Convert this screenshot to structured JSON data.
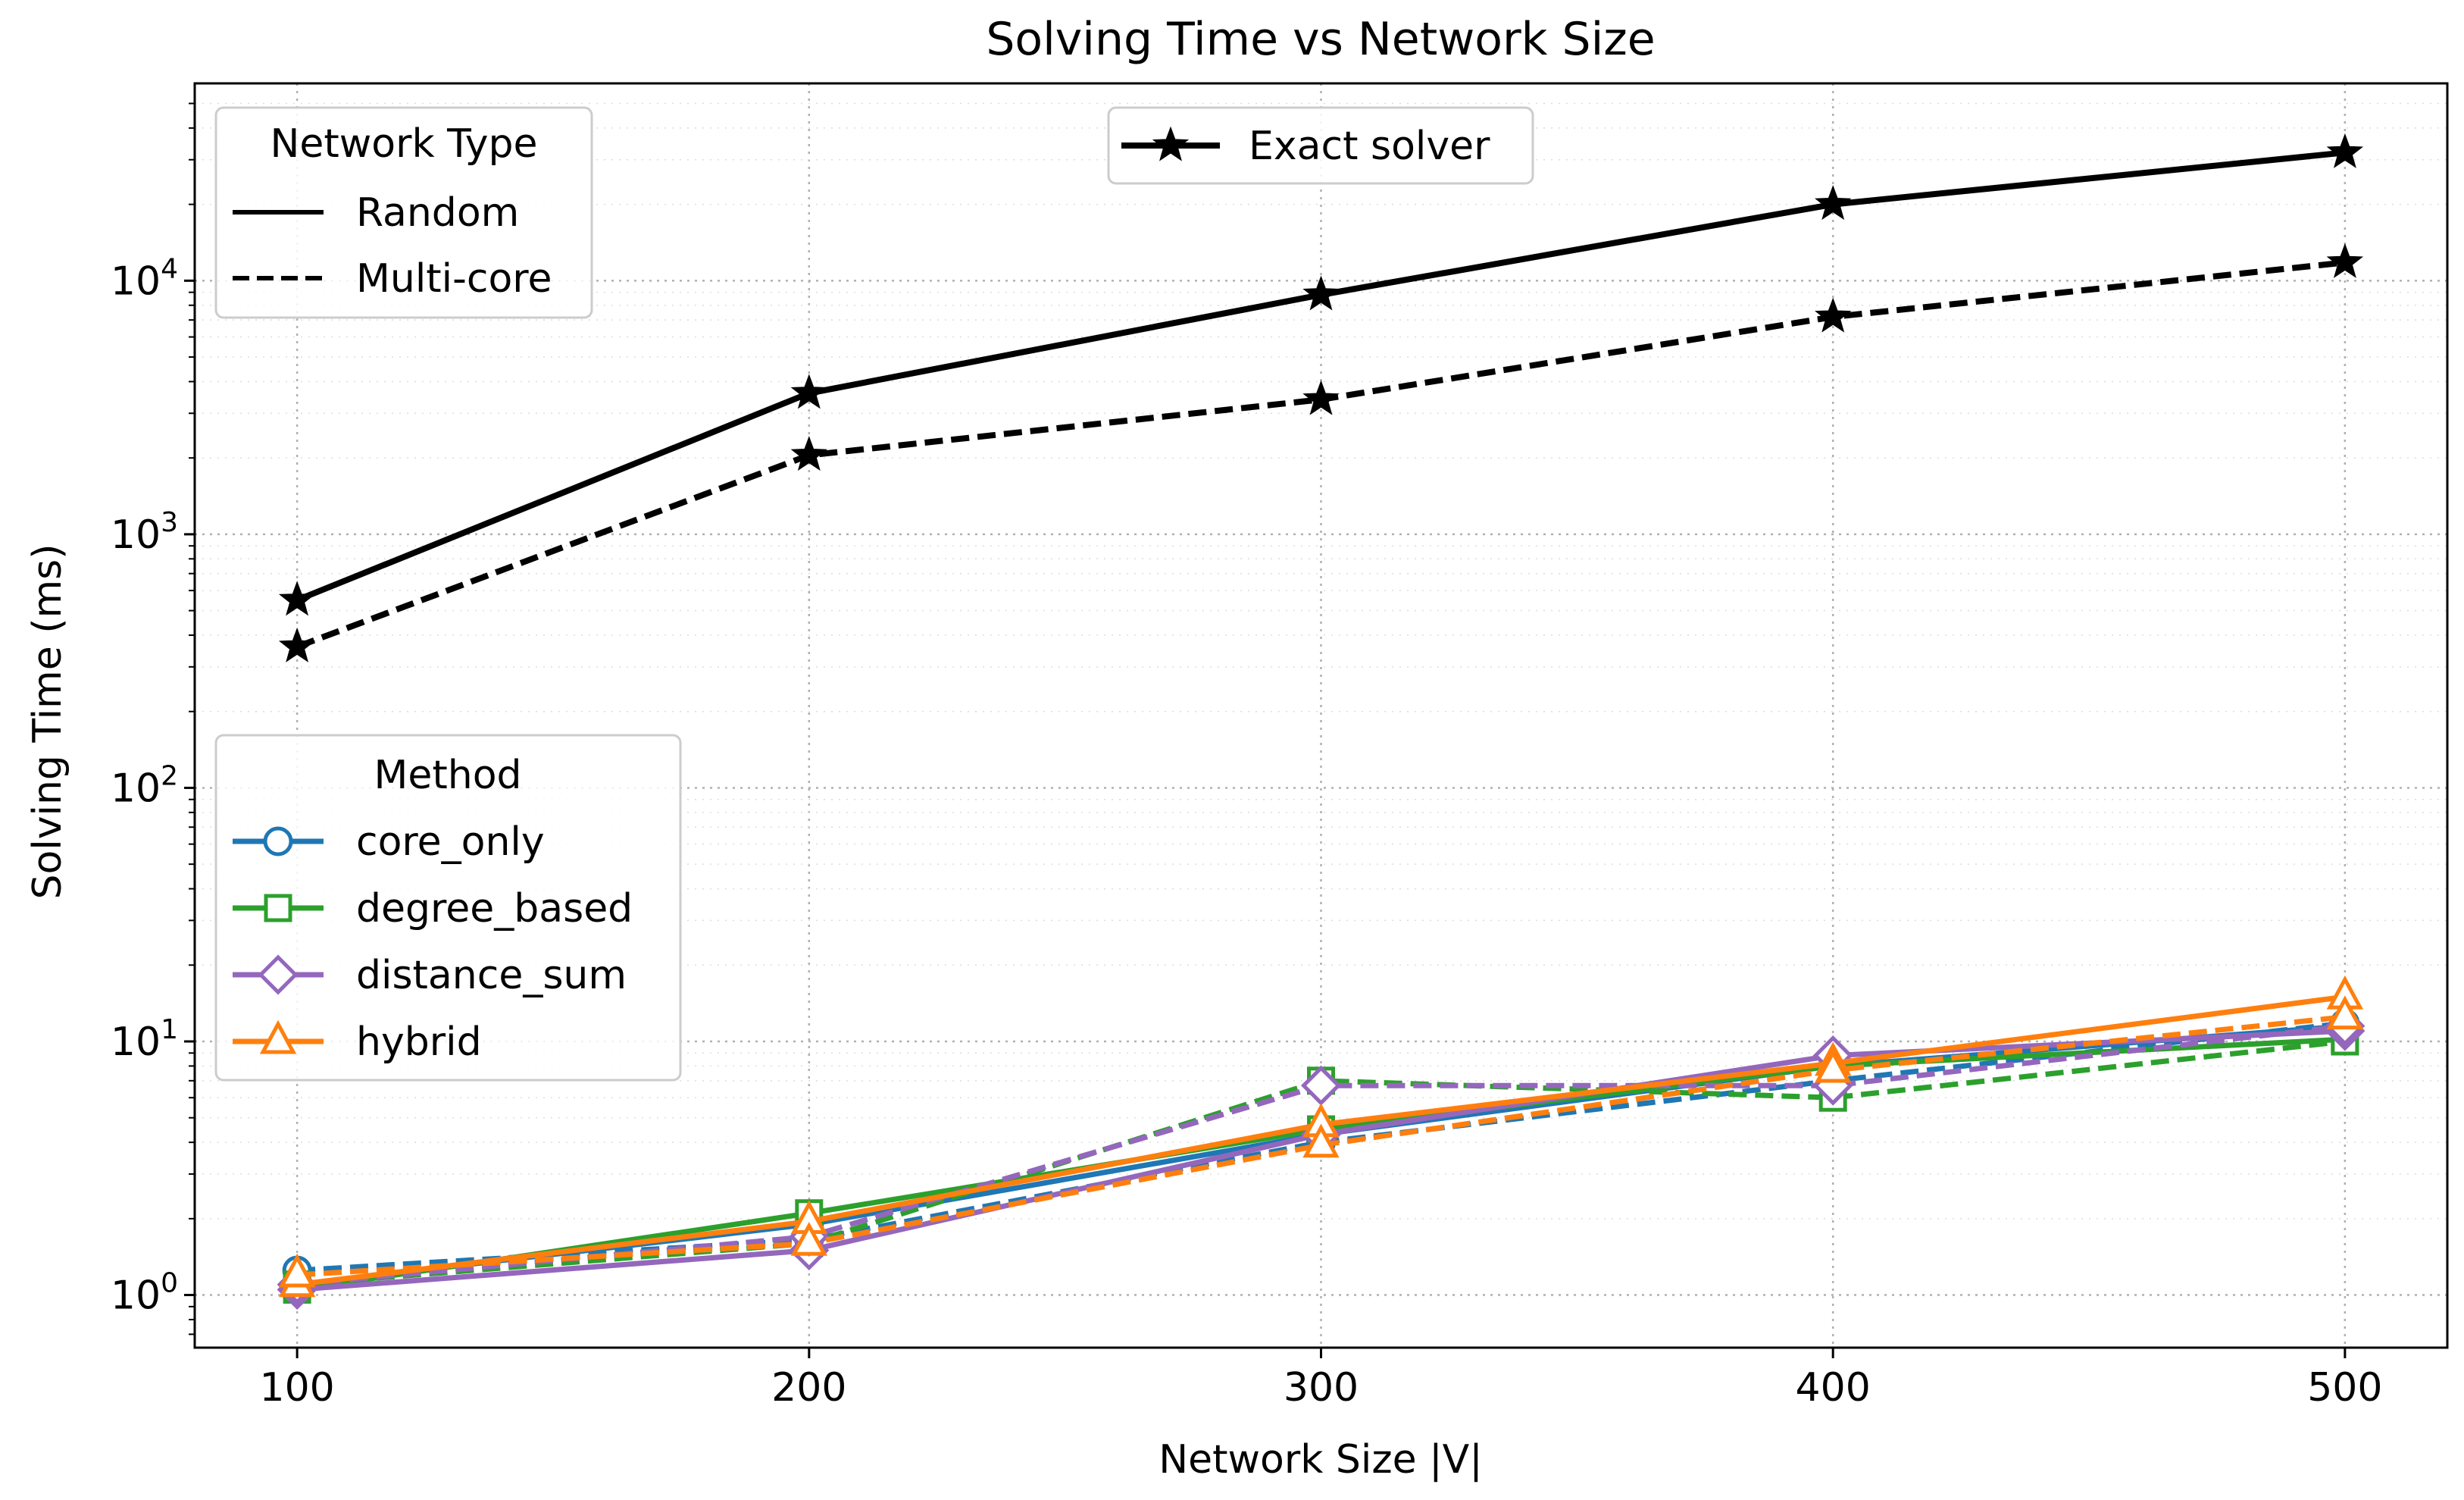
{
  "chart_data": {
    "type": "line",
    "title": "Solving Time vs Network Size",
    "xlabel": "Network Size |V|",
    "ylabel": "Solving Time (ms)",
    "x": [
      100,
      200,
      300,
      400,
      500
    ],
    "x_ticks": [
      "100",
      "200",
      "300",
      "400",
      "500"
    ],
    "y_scale": "log",
    "y_ticks": [
      {
        "base": "10",
        "exp": "0",
        "value": 1
      },
      {
        "base": "10",
        "exp": "1",
        "value": 10
      },
      {
        "base": "10",
        "exp": "2",
        "value": 100
      },
      {
        "base": "10",
        "exp": "3",
        "value": 1000
      },
      {
        "base": "10",
        "exp": "4",
        "value": 10000
      }
    ],
    "xlim": [
      80,
      520
    ],
    "ylim": [
      0.62,
      60000
    ],
    "grid": true,
    "legends": {
      "network_type": {
        "title": "Network Type",
        "placement": "top-left",
        "items": [
          {
            "label": "Random",
            "style": "solid"
          },
          {
            "label": "Multi-core",
            "style": "dashed"
          }
        ]
      },
      "solver": {
        "placement": "top-center",
        "items": [
          {
            "label": "Exact solver",
            "color": "#000000",
            "marker": "star"
          }
        ]
      },
      "method": {
        "title": "Method",
        "placement": "center-left",
        "items": [
          {
            "label": "core_only",
            "color": "#1f77b4",
            "marker": "circle"
          },
          {
            "label": "degree_based",
            "color": "#2ca02c",
            "marker": "square"
          },
          {
            "label": "distance_sum",
            "color": "#9467bd",
            "marker": "diamond"
          },
          {
            "label": "hybrid",
            "color": "#ff7f0e",
            "marker": "triangle"
          }
        ]
      }
    },
    "series": [
      {
        "method": "Exact solver",
        "network": "Random",
        "color": "#000000",
        "marker": "star",
        "style": "solid",
        "values": [
          550,
          3600,
          8800,
          20000,
          32000
        ]
      },
      {
        "method": "Exact solver",
        "network": "Multi-core",
        "color": "#000000",
        "marker": "star",
        "style": "dashed",
        "values": [
          360,
          2050,
          3400,
          7200,
          11800
        ]
      },
      {
        "method": "core_only",
        "network": "Random",
        "color": "#1f77b4",
        "marker": "circle",
        "style": "solid",
        "values": [
          1.1,
          1.9,
          4.3,
          8.0,
          11.5
        ]
      },
      {
        "method": "core_only",
        "network": "Multi-core",
        "color": "#1f77b4",
        "marker": "circle",
        "style": "dashed",
        "values": [
          1.25,
          1.65,
          4.0,
          7.0,
          11.8
        ]
      },
      {
        "method": "degree_based",
        "network": "Random",
        "color": "#2ca02c",
        "marker": "square",
        "style": "solid",
        "values": [
          1.05,
          2.1,
          4.5,
          8.0,
          10.2
        ]
      },
      {
        "method": "degree_based",
        "network": "Multi-core",
        "color": "#2ca02c",
        "marker": "square",
        "style": "dashed",
        "values": [
          1.1,
          1.6,
          7.0,
          6.0,
          10.0
        ]
      },
      {
        "method": "distance_sum",
        "network": "Random",
        "color": "#9467bd",
        "marker": "diamond",
        "style": "solid",
        "values": [
          1.05,
          1.5,
          4.3,
          8.8,
          11.0
        ]
      },
      {
        "method": "distance_sum",
        "network": "Multi-core",
        "color": "#9467bd",
        "marker": "diamond",
        "style": "dashed",
        "values": [
          1.1,
          1.7,
          6.7,
          6.7,
          11.5
        ]
      },
      {
        "method": "hybrid",
        "network": "Random",
        "color": "#ff7f0e",
        "marker": "triangle",
        "style": "solid",
        "values": [
          1.1,
          1.95,
          4.7,
          8.2,
          15.0
        ]
      },
      {
        "method": "hybrid",
        "network": "Multi-core",
        "color": "#ff7f0e",
        "marker": "triangle",
        "style": "dashed",
        "values": [
          1.2,
          1.6,
          3.9,
          7.7,
          12.5
        ]
      }
    ]
  }
}
